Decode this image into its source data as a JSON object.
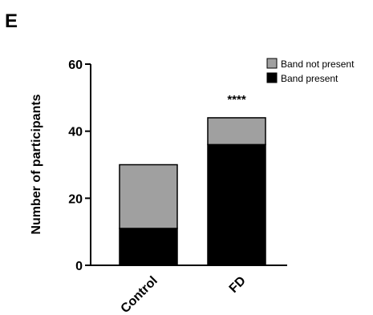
{
  "panel_label": "E",
  "chart_data": {
    "type": "bar",
    "stacked": true,
    "categories": [
      "Control",
      "FD"
    ],
    "series": [
      {
        "name": "Band present",
        "color": "#000000",
        "values": [
          11,
          36
        ]
      },
      {
        "name": "Band not present",
        "color": "#a0a0a0",
        "values": [
          19,
          8
        ]
      }
    ],
    "ylabel": "Number of participants",
    "ylim": [
      0,
      60
    ],
    "yticks": [
      "0",
      "20",
      "40",
      "60"
    ],
    "annotations": [
      {
        "category": "FD",
        "text": "****"
      }
    ],
    "legend_position": "top-right",
    "grid": false
  }
}
